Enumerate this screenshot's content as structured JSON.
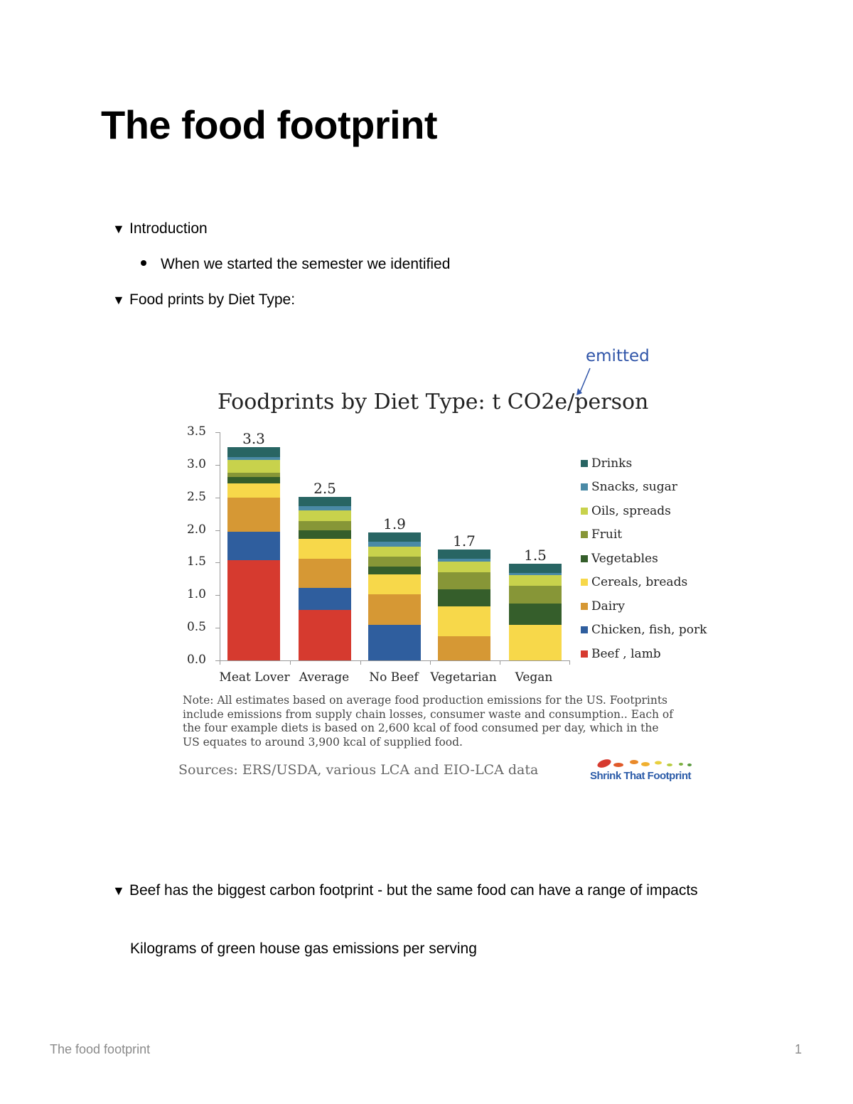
{
  "document": {
    "title": "The food footprint",
    "sections": [
      {
        "label": "Introduction",
        "bullets": [
          "When we started the semester we identified"
        ]
      },
      {
        "label": "Food prints by Diet Type:"
      },
      {
        "label": "Beef has the biggest carbon footprint - but the same food can have a range of impacts",
        "subtext": "Kilograms of green house gas emissions per serving"
      }
    ],
    "footer": {
      "title": "The food footprint",
      "page_number": "1"
    }
  },
  "icons": {
    "toggle": "triangle-down-icon",
    "bullet": "bullet-dot-icon"
  },
  "chart": {
    "annotation": "emitted",
    "note": "Note: All estimates based on average food production emissions for the US. Footprints include emissions from supply chain losses, consumer waste and consumption..  Each of the four example diets is based on 2,600 kcal of food consumed per day, which in the US equates to around 3,900 kcal of supplied food.",
    "sources": "Sources:  ERS/USDA, various LCA and EIO-LCA data",
    "logo_text": "Shrink That Footprint"
  },
  "chart_data": {
    "type": "bar",
    "stacked": true,
    "title": "Foodprints by Diet Type: t CO2e/person",
    "annotation": "emitted",
    "xlabel": "",
    "ylabel": "t CO2e/person",
    "ylim": [
      0,
      3.5
    ],
    "yticks": [
      "0.0",
      "0.5",
      "1.0",
      "1.5",
      "2.0",
      "2.5",
      "3.0",
      "3.5"
    ],
    "grid": false,
    "legend_position": "right",
    "categories": [
      "Meat Lover",
      "Average",
      "No Beef",
      "Vegetarian",
      "Vegan"
    ],
    "totals": [
      3.3,
      2.5,
      1.9,
      1.7,
      1.5
    ],
    "total_labels": [
      "3.3",
      "2.5",
      "1.9",
      "1.7",
      "1.5"
    ],
    "series": [
      {
        "name": "Beef , lamb",
        "color": "#d63a2f",
        "values": [
          1.54,
          0.77,
          0,
          0,
          0
        ]
      },
      {
        "name": "Chicken, fish, pork",
        "color": "#2f5e9e",
        "values": [
          0.43,
          0.34,
          0.55,
          0,
          0
        ]
      },
      {
        "name": "Dairy",
        "color": "#d69834",
        "values": [
          0.53,
          0.45,
          0.46,
          0.37,
          0
        ]
      },
      {
        "name": "Cereals, breads",
        "color": "#f7d84a",
        "values": [
          0.22,
          0.31,
          0.31,
          0.46,
          0.55
        ]
      },
      {
        "name": "Vegetables",
        "color": "#355e2b",
        "values": [
          0.09,
          0.13,
          0.12,
          0.26,
          0.32
        ]
      },
      {
        "name": "Fruit",
        "color": "#879637",
        "values": [
          0.07,
          0.14,
          0.15,
          0.26,
          0.28
        ]
      },
      {
        "name": "Oils, spreads",
        "color": "#c8d24c",
        "values": [
          0.2,
          0.16,
          0.16,
          0.17,
          0.16
        ]
      },
      {
        "name": "Snacks, sugar",
        "color": "#4a8aa6",
        "values": [
          0.04,
          0.07,
          0.07,
          0.04,
          0.03
        ]
      },
      {
        "name": "Drinks",
        "color": "#286563",
        "values": [
          0.15,
          0.14,
          0.14,
          0.14,
          0.14
        ]
      }
    ],
    "legend_order": [
      "Drinks",
      "Snacks, sugar",
      "Oils, spreads",
      "Fruit",
      "Vegetables",
      "Cereals, breads",
      "Dairy",
      "Chicken, fish, pork",
      "Beef , lamb"
    ]
  }
}
